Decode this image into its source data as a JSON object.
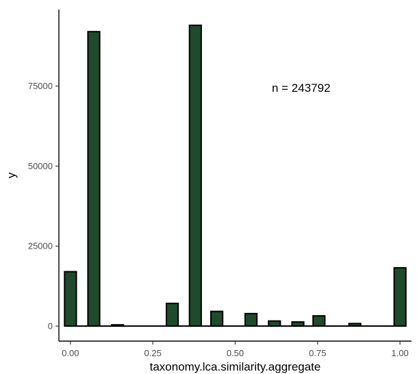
{
  "chart_data": {
    "type": "bar",
    "xlabel": "taxonomy.lca.similarity.aggregate",
    "ylabel": "y",
    "annotation": {
      "text": "n = 243792",
      "x": 0.7,
      "y": 74500
    },
    "x_ticks": [
      0.0,
      0.25,
      0.5,
      0.75,
      1.0
    ],
    "x_tick_labels": [
      "0.00",
      "0.25",
      "0.50",
      "0.75",
      "1.00"
    ],
    "y_ticks": [
      0,
      25000,
      50000,
      75000
    ],
    "y_tick_labels": [
      "0",
      "25000",
      "50000",
      "75000"
    ],
    "xlim": [
      -0.035,
      1.035
    ],
    "ylim": [
      -4700,
      98900
    ],
    "bin_width": 0.0357,
    "bars": [
      {
        "x": 0.0,
        "value": 17000
      },
      {
        "x": 0.071,
        "value": 92000
      },
      {
        "x": 0.143,
        "value": 400
      },
      {
        "x": 0.309,
        "value": 7100
      },
      {
        "x": 0.379,
        "value": 94000
      },
      {
        "x": 0.444,
        "value": 4600
      },
      {
        "x": 0.548,
        "value": 3900
      },
      {
        "x": 0.619,
        "value": 1600
      },
      {
        "x": 0.69,
        "value": 1300
      },
      {
        "x": 0.754,
        "value": 3200
      },
      {
        "x": 0.863,
        "value": 800
      },
      {
        "x": 1.0,
        "value": 18200
      }
    ],
    "bar_fill": "#1f4a2c",
    "bar_outline": "#000000",
    "grid": false,
    "legend": "none"
  }
}
